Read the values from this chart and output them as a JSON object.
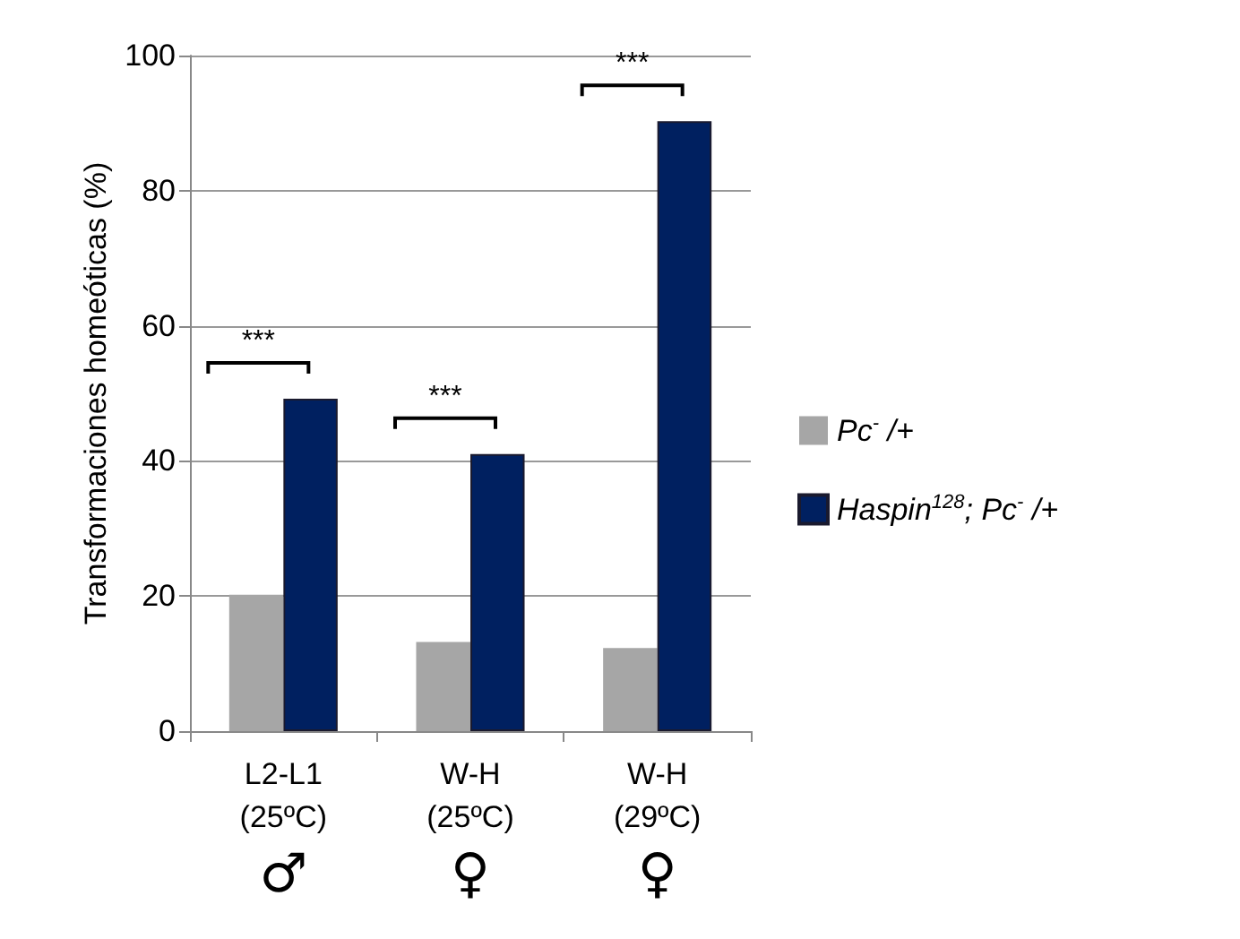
{
  "chart_data": {
    "type": "bar",
    "ylabel": "Transformaciones homeóticas (%)",
    "categories": [
      "L2-L1\n(25ºC)\n♂",
      "W-H\n(25ºC)\n♀",
      "W-H\n(29ºC)\n♀"
    ],
    "series": [
      {
        "name": "Pc$^{-}$ /+",
        "color": "#a6a6a6",
        "values": [
          20.2,
          13.2,
          12.3
        ]
      },
      {
        "name": "Haspin$^{128}$; Pc$^{-}$ /+",
        "color": "#002060",
        "values": [
          49.2,
          41,
          90.3
        ]
      }
    ],
    "ylim": [
      0,
      100
    ],
    "yticks": [
      0,
      20,
      40,
      60,
      80,
      100
    ],
    "grid": "y",
    "legend": "right",
    "annotations": [
      "***",
      "***",
      "***"
    ]
  }
}
